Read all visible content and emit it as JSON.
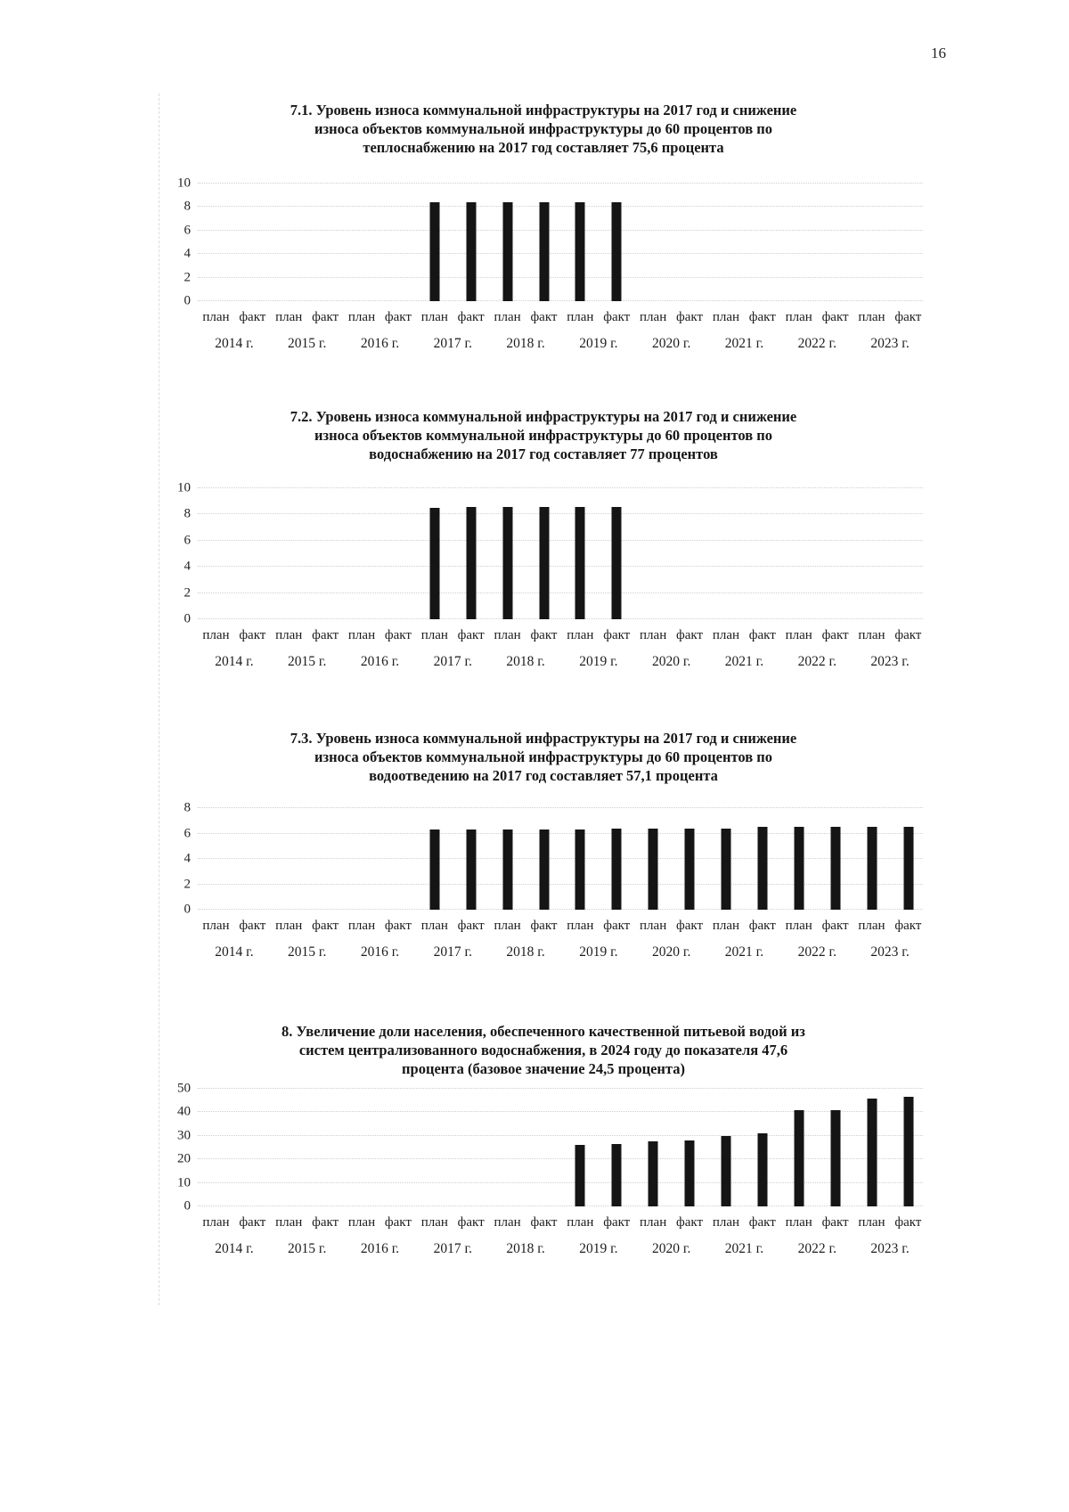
{
  "page": {
    "number": "16"
  },
  "chart_data": [
    {
      "type": "bar",
      "title": "7.1. Уровень износа коммунальной инфраструктуры на 2017 год и снижение износа объектов коммунальной инфраструктуры до 60 процентов по теплоснабжению на 2017 год составляет 75,6 процента",
      "title_lines": [
        "7.1. Уровень износа коммунальной инфраструктуры на 2017 год и снижение",
        "износа объектов коммунальной инфраструктуры до 60 процентов по",
        "теплоснабжению на 2017 год составляет 75,6 процента"
      ],
      "ylim": [
        0,
        10
      ],
      "yticks": [
        10,
        8,
        6,
        4,
        2,
        0
      ],
      "categories": [
        "2014 г.",
        "2015 г.",
        "2016 г.",
        "2017 г.",
        "2018 г.",
        "2019 г.",
        "2020 г.",
        "2021 г.",
        "2022 г.",
        "2023 г."
      ],
      "pair_labels": [
        "план",
        "факт"
      ],
      "series": [
        {
          "name": "план",
          "values": [
            null,
            null,
            null,
            8.4,
            8.4,
            8.4,
            null,
            null,
            null,
            null
          ]
        },
        {
          "name": "факт",
          "values": [
            null,
            null,
            null,
            8.4,
            8.4,
            8.4,
            null,
            null,
            null,
            null
          ]
        }
      ],
      "grid": true,
      "legend": "none",
      "bar_color": "#151515"
    },
    {
      "type": "bar",
      "title": "7.2. Уровень износа коммунальной инфраструктуры на 2017 год и снижение износа объектов коммунальной инфраструктуры до 60 процентов по водоснабжению на 2017 год составляет 77 процентов",
      "title_lines": [
        "7.2. Уровень износа коммунальной инфраструктуры на 2017 год и снижение",
        "износа объектов коммунальной инфраструктуры до 60 процентов по",
        "водоснабжению на 2017 год составляет 77 процентов"
      ],
      "ylim": [
        0,
        10
      ],
      "yticks": [
        10,
        8,
        6,
        4,
        2,
        0
      ],
      "categories": [
        "2014 г.",
        "2015 г.",
        "2016 г.",
        "2017 г.",
        "2018 г.",
        "2019 г.",
        "2020 г.",
        "2021 г.",
        "2022 г.",
        "2023 г."
      ],
      "pair_labels": [
        "план",
        "факт"
      ],
      "series": [
        {
          "name": "план",
          "values": [
            null,
            null,
            null,
            8.5,
            8.6,
            8.6,
            null,
            null,
            null,
            null
          ]
        },
        {
          "name": "факт",
          "values": [
            null,
            null,
            null,
            8.6,
            8.6,
            8.6,
            null,
            null,
            null,
            null
          ]
        }
      ],
      "grid": true,
      "legend": "none",
      "bar_color": "#151515"
    },
    {
      "type": "bar",
      "title": "7.3. Уровень износа коммунальной инфраструктуры на 2017 год и снижение износа объектов коммунальной инфраструктуры до 60 процентов по водоотведению на 2017 год составляет 57,1 процента",
      "title_lines": [
        "7.3. Уровень износа коммунальной инфраструктуры на 2017 год и снижение",
        "износа объектов коммунальной инфраструктуры до 60 процентов по",
        "водоотведению на 2017 год составляет 57,1 процента"
      ],
      "ylim": [
        0,
        8
      ],
      "yticks": [
        8,
        6,
        4,
        2,
        0
      ],
      "categories": [
        "2014 г.",
        "2015 г.",
        "2016 г.",
        "2017 г.",
        "2018 г.",
        "2019 г.",
        "2020 г.",
        "2021 г.",
        "2022 г.",
        "2023 г."
      ],
      "pair_labels": [
        "план",
        "факт"
      ],
      "series": [
        {
          "name": "план",
          "values": [
            null,
            null,
            null,
            6.3,
            6.3,
            6.3,
            6.4,
            6.4,
            6.5,
            6.5
          ]
        },
        {
          "name": "факт",
          "values": [
            null,
            null,
            null,
            6.3,
            6.3,
            6.4,
            6.4,
            6.5,
            6.5,
            6.5
          ]
        }
      ],
      "grid": true,
      "legend": "none",
      "bar_color": "#151515"
    },
    {
      "type": "bar",
      "title": "8. Увеличение доли населения, обеспеченного качественной питьевой водой из систем централизованного водоснабжения, в 2024 году до показателя 47,6 процента (базовое значение 24,5 процента)",
      "title_lines": [
        "8. Увеличение доли населения, обеспеченного качественной питьевой водой из",
        "систем централизованного водоснабжения, в 2024 году до показателя 47,6",
        "процента (базовое значение 24,5 процента)"
      ],
      "ylim": [
        0,
        50
      ],
      "yticks": [
        50,
        40,
        30,
        20,
        10,
        0
      ],
      "categories": [
        "2014 г.",
        "2015 г.",
        "2016 г.",
        "2017 г.",
        "2018 г.",
        "2019 г.",
        "2020 г.",
        "2021 г.",
        "2022 г.",
        "2023 г."
      ],
      "pair_labels": [
        "план",
        "факт"
      ],
      "series": [
        {
          "name": "план",
          "values": [
            null,
            null,
            null,
            null,
            null,
            26,
            27.5,
            30,
            41,
            46
          ]
        },
        {
          "name": "факт",
          "values": [
            null,
            null,
            null,
            null,
            null,
            26.5,
            28,
            31,
            41,
            46.5
          ]
        }
      ],
      "grid": true,
      "legend": "none",
      "bar_color": "#151515"
    }
  ]
}
